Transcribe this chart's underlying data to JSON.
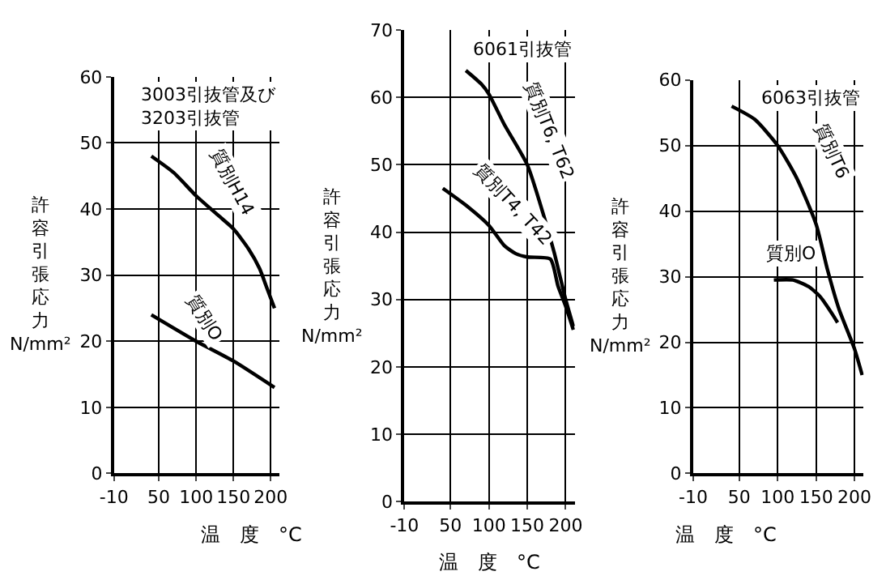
{
  "chart_data": [
    {
      "type": "line",
      "title": "3003引抜管及び\n3203引抜管",
      "xlabel": "温　度　°C",
      "ylabel": "許容引張応力 N/mm²",
      "xlim": [
        -10,
        212
      ],
      "xticks": [
        -10,
        50,
        100,
        150,
        200
      ],
      "ylim": [
        0,
        60
      ],
      "yticks": [
        0,
        10,
        20,
        30,
        40,
        50,
        60
      ],
      "grid": true,
      "marker": "none",
      "series": [
        {
          "name": "質別H14",
          "color": "#000000",
          "x": [
            40,
            70,
            100,
            130,
            150,
            170,
            185,
            195,
            205
          ],
          "values": [
            48,
            45.5,
            42,
            39,
            37,
            34,
            31,
            28,
            25
          ]
        },
        {
          "name": "質別O",
          "color": "#000000",
          "x": [
            40,
            100,
            150,
            205
          ],
          "values": [
            24,
            20,
            17,
            13
          ]
        }
      ]
    },
    {
      "type": "line",
      "title": "6061引抜管",
      "xlabel": "温　度　°C",
      "ylabel": "許容引張応力 N/mm²",
      "xlim": [
        -10,
        212
      ],
      "xticks": [
        -10,
        50,
        100,
        150,
        200
      ],
      "ylim": [
        0,
        70
      ],
      "yticks": [
        0,
        10,
        20,
        30,
        40,
        50,
        60,
        70
      ],
      "grid": true,
      "marker": "none",
      "series": [
        {
          "name": "質別T6, T62",
          "color": "#000000",
          "x": [
            70,
            90,
            100,
            120,
            150,
            170,
            185,
            200,
            210
          ],
          "values": [
            64,
            62,
            60.5,
            56,
            50,
            43,
            37,
            30,
            26
          ]
        },
        {
          "name": "質別T4, T42",
          "color": "#000000",
          "x": [
            40,
            70,
            100,
            120,
            135,
            150,
            180,
            190,
            200,
            210
          ],
          "values": [
            46.5,
            44,
            41,
            38,
            36.8,
            36.3,
            36,
            32,
            29,
            25.5
          ]
        }
      ]
    },
    {
      "type": "line",
      "title": "6063引抜管",
      "xlabel": "温　度　°C",
      "ylabel": "許容引張応力 N/mm²",
      "xlim": [
        -10,
        212
      ],
      "xticks": [
        -10,
        50,
        100,
        150,
        200
      ],
      "ylim": [
        0,
        60
      ],
      "yticks": [
        0,
        10,
        20,
        30,
        40,
        50,
        60
      ],
      "grid": true,
      "marker": "none",
      "series": [
        {
          "name": "質別T6",
          "color": "#000000",
          "x": [
            40,
            70,
            100,
            125,
            150,
            165,
            180,
            200,
            210
          ],
          "values": [
            56,
            54,
            50,
            45,
            38,
            31,
            25,
            19,
            15
          ]
        },
        {
          "name": "質別O",
          "color": "#000000",
          "x": [
            95,
            120,
            140,
            155,
            170,
            178
          ],
          "values": [
            29.5,
            29.5,
            28.5,
            27,
            24.5,
            23
          ]
        }
      ]
    }
  ]
}
